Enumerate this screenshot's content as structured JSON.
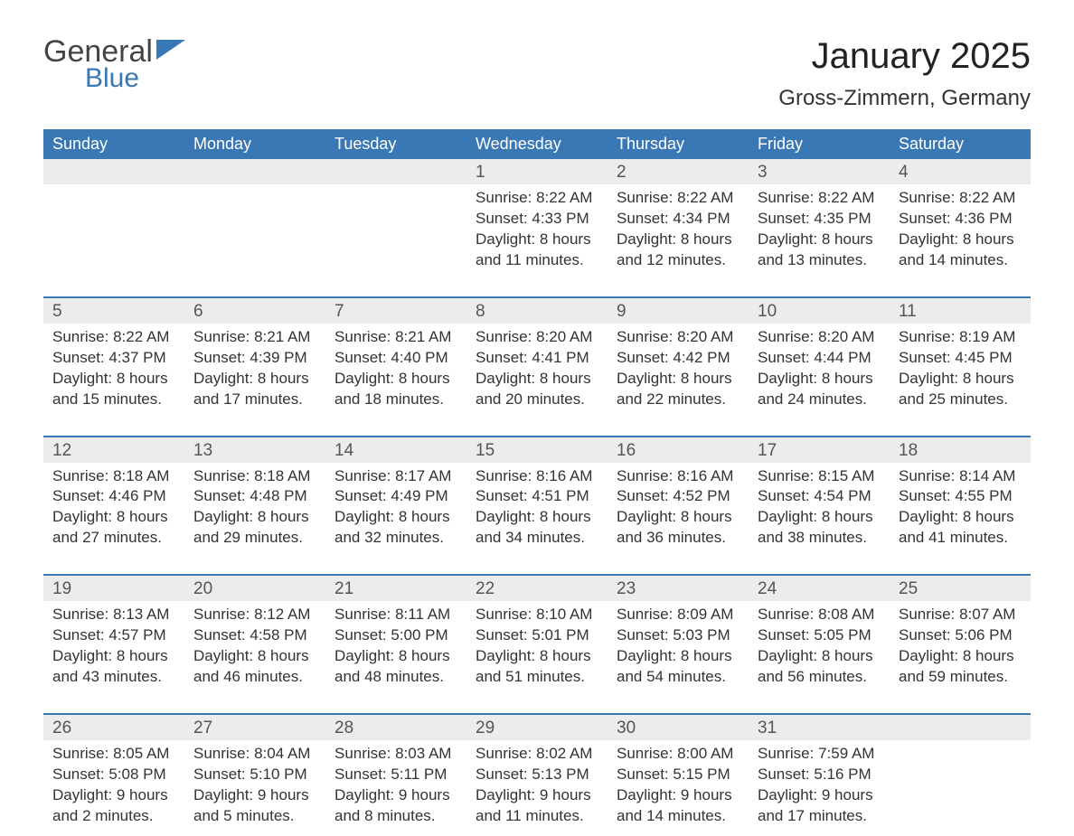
{
  "logo": {
    "text1": "General",
    "text2": "Blue"
  },
  "title": "January 2025",
  "location": "Gross-Zimmern, Germany",
  "colors": {
    "header_bg": "#3a78b5",
    "header_text": "#ffffff",
    "daynum_bg": "#ececec",
    "body_text": "#333333",
    "border": "#3a78b5"
  },
  "day_headers": [
    "Sunday",
    "Monday",
    "Tuesday",
    "Wednesday",
    "Thursday",
    "Friday",
    "Saturday"
  ],
  "weeks": [
    [
      null,
      null,
      null,
      {
        "n": "1",
        "sr": "8:22 AM",
        "ss": "4:33 PM",
        "dl": "8 hours and 11 minutes."
      },
      {
        "n": "2",
        "sr": "8:22 AM",
        "ss": "4:34 PM",
        "dl": "8 hours and 12 minutes."
      },
      {
        "n": "3",
        "sr": "8:22 AM",
        "ss": "4:35 PM",
        "dl": "8 hours and 13 minutes."
      },
      {
        "n": "4",
        "sr": "8:22 AM",
        "ss": "4:36 PM",
        "dl": "8 hours and 14 minutes."
      }
    ],
    [
      {
        "n": "5",
        "sr": "8:22 AM",
        "ss": "4:37 PM",
        "dl": "8 hours and 15 minutes."
      },
      {
        "n": "6",
        "sr": "8:21 AM",
        "ss": "4:39 PM",
        "dl": "8 hours and 17 minutes."
      },
      {
        "n": "7",
        "sr": "8:21 AM",
        "ss": "4:40 PM",
        "dl": "8 hours and 18 minutes."
      },
      {
        "n": "8",
        "sr": "8:20 AM",
        "ss": "4:41 PM",
        "dl": "8 hours and 20 minutes."
      },
      {
        "n": "9",
        "sr": "8:20 AM",
        "ss": "4:42 PM",
        "dl": "8 hours and 22 minutes."
      },
      {
        "n": "10",
        "sr": "8:20 AM",
        "ss": "4:44 PM",
        "dl": "8 hours and 24 minutes."
      },
      {
        "n": "11",
        "sr": "8:19 AM",
        "ss": "4:45 PM",
        "dl": "8 hours and 25 minutes."
      }
    ],
    [
      {
        "n": "12",
        "sr": "8:18 AM",
        "ss": "4:46 PM",
        "dl": "8 hours and 27 minutes."
      },
      {
        "n": "13",
        "sr": "8:18 AM",
        "ss": "4:48 PM",
        "dl": "8 hours and 29 minutes."
      },
      {
        "n": "14",
        "sr": "8:17 AM",
        "ss": "4:49 PM",
        "dl": "8 hours and 32 minutes."
      },
      {
        "n": "15",
        "sr": "8:16 AM",
        "ss": "4:51 PM",
        "dl": "8 hours and 34 minutes."
      },
      {
        "n": "16",
        "sr": "8:16 AM",
        "ss": "4:52 PM",
        "dl": "8 hours and 36 minutes."
      },
      {
        "n": "17",
        "sr": "8:15 AM",
        "ss": "4:54 PM",
        "dl": "8 hours and 38 minutes."
      },
      {
        "n": "18",
        "sr": "8:14 AM",
        "ss": "4:55 PM",
        "dl": "8 hours and 41 minutes."
      }
    ],
    [
      {
        "n": "19",
        "sr": "8:13 AM",
        "ss": "4:57 PM",
        "dl": "8 hours and 43 minutes."
      },
      {
        "n": "20",
        "sr": "8:12 AM",
        "ss": "4:58 PM",
        "dl": "8 hours and 46 minutes."
      },
      {
        "n": "21",
        "sr": "8:11 AM",
        "ss": "5:00 PM",
        "dl": "8 hours and 48 minutes."
      },
      {
        "n": "22",
        "sr": "8:10 AM",
        "ss": "5:01 PM",
        "dl": "8 hours and 51 minutes."
      },
      {
        "n": "23",
        "sr": "8:09 AM",
        "ss": "5:03 PM",
        "dl": "8 hours and 54 minutes."
      },
      {
        "n": "24",
        "sr": "8:08 AM",
        "ss": "5:05 PM",
        "dl": "8 hours and 56 minutes."
      },
      {
        "n": "25",
        "sr": "8:07 AM",
        "ss": "5:06 PM",
        "dl": "8 hours and 59 minutes."
      }
    ],
    [
      {
        "n": "26",
        "sr": "8:05 AM",
        "ss": "5:08 PM",
        "dl": "9 hours and 2 minutes."
      },
      {
        "n": "27",
        "sr": "8:04 AM",
        "ss": "5:10 PM",
        "dl": "9 hours and 5 minutes."
      },
      {
        "n": "28",
        "sr": "8:03 AM",
        "ss": "5:11 PM",
        "dl": "9 hours and 8 minutes."
      },
      {
        "n": "29",
        "sr": "8:02 AM",
        "ss": "5:13 PM",
        "dl": "9 hours and 11 minutes."
      },
      {
        "n": "30",
        "sr": "8:00 AM",
        "ss": "5:15 PM",
        "dl": "9 hours and 14 minutes."
      },
      {
        "n": "31",
        "sr": "7:59 AM",
        "ss": "5:16 PM",
        "dl": "9 hours and 17 minutes."
      },
      null
    ]
  ],
  "labels": {
    "sunrise": "Sunrise: ",
    "sunset": "Sunset: ",
    "daylight": "Daylight: "
  }
}
